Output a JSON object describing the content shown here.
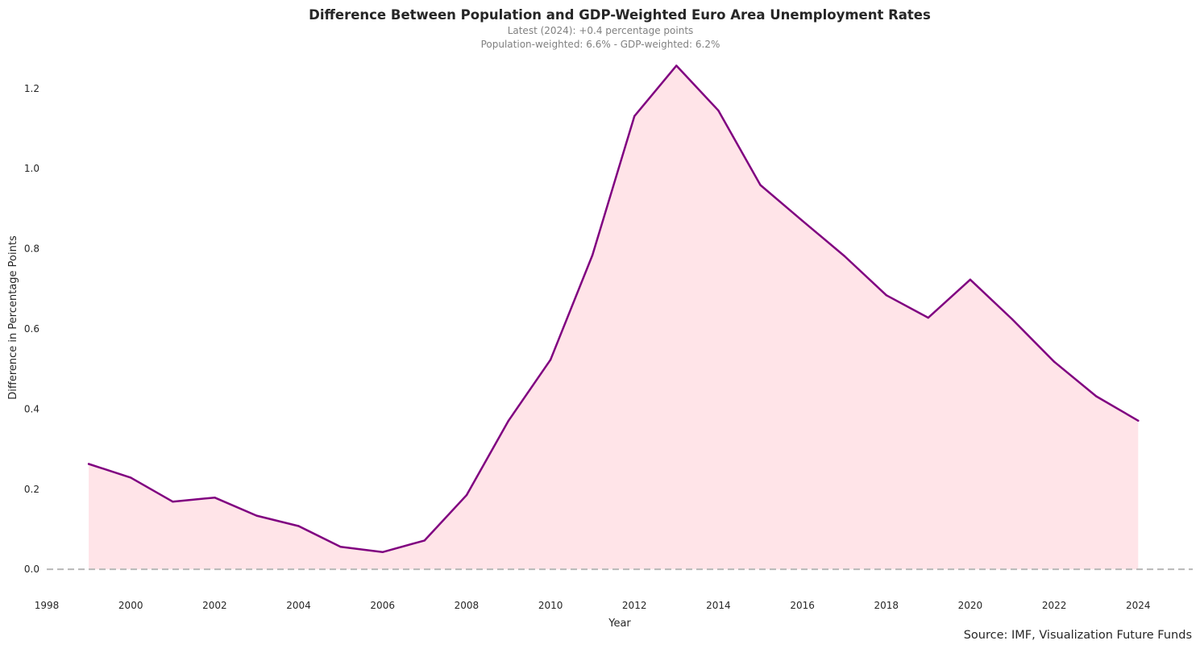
{
  "chart_data": {
    "type": "line",
    "title": "Difference Between Population and GDP-Weighted Euro Area Unemployment Rates",
    "subtitle_line1": "Latest (2024): +0.4 percentage points",
    "subtitle_line2": "Population-weighted: 6.6% - GDP-weighted: 6.2%",
    "xlabel": "Year",
    "ylabel": "Difference in Percentage Points",
    "source": "Source: IMF, Visualization Future Funds",
    "xlim": [
      1998,
      2025.3
    ],
    "ylim": [
      -0.06,
      1.28
    ],
    "x_ticks": [
      "1998",
      "2000",
      "2002",
      "2004",
      "2006",
      "2008",
      "2010",
      "2012",
      "2014",
      "2016",
      "2018",
      "2020",
      "2022",
      "2024"
    ],
    "y_ticks": [
      "0.0",
      "0.2",
      "0.4",
      "0.6",
      "0.8",
      "1.0",
      "1.2"
    ],
    "grid": false,
    "legend": "none",
    "line_color": "#800080",
    "fill_color": "#ffe4e8",
    "reference_line": {
      "y": 0,
      "style": "dashed",
      "color": "#b8b8b8"
    },
    "x": [
      1999,
      2000,
      2001,
      2002,
      2003,
      2004,
      2005,
      2006,
      2007,
      2008,
      2009,
      2010,
      2011,
      2012,
      2013,
      2014,
      2015,
      2016,
      2017,
      2018,
      2019,
      2020,
      2021,
      2022,
      2023,
      2024
    ],
    "values": [
      0.263,
      0.229,
      0.169,
      0.179,
      0.134,
      0.108,
      0.056,
      0.043,
      0.072,
      0.185,
      0.371,
      0.523,
      0.784,
      1.131,
      1.257,
      1.145,
      0.959,
      0.87,
      0.782,
      0.684,
      0.628,
      0.723,
      0.624,
      0.518,
      0.432,
      0.371
    ]
  }
}
